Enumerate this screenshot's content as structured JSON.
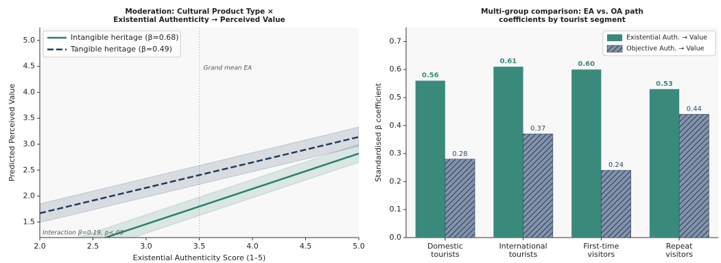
{
  "chart_data": [
    {
      "type": "line",
      "title": "Moderation: Cultural Product Type ×\nExistential Authenticity → Perceived Value",
      "xlabel": "Existential Authenticity Score (1–5)",
      "ylabel": "Predicted Perceived Value",
      "x": [
        2,
        5
      ],
      "series": [
        {
          "name": "Intangible heritage (β=0.68)",
          "color": "#2a7d6b",
          "linestyle": "solid",
          "values": [
            0.78,
            2.82
          ],
          "lower": [
            0.6,
            2.65
          ],
          "upper": [
            0.96,
            3.0
          ]
        },
        {
          "name": "Tangible heritage (β=0.49)",
          "color": "#1f3a5f",
          "linestyle": "dashed",
          "values": [
            1.67,
            3.14
          ],
          "lower": [
            1.49,
            2.96
          ],
          "upper": [
            1.85,
            3.33
          ]
        }
      ],
      "xlim": [
        2,
        5.0
      ],
      "ylim": [
        1.2,
        5.25
      ],
      "xticks": [
        {
          "value": 2,
          "label": "2.0"
        },
        2.5,
        {
          "value": 3,
          "label": "3.0"
        },
        3.5,
        {
          "value": 4,
          "label": "4.0"
        },
        4.5,
        {
          "value": 5,
          "label": "5.0"
        }
      ],
      "yticks": [
        1.5,
        {
          "value": 2,
          "label": "2.0"
        },
        2.5,
        {
          "value": 3,
          "label": "3.0"
        },
        3.5,
        {
          "value": 4,
          "label": "4.0"
        },
        4.5,
        {
          "value": 5,
          "label": "5.0"
        }
      ],
      "vline": 3.5,
      "vline_label": "Grand mean EA",
      "annotation": "Interaction β=0.19, p<.05",
      "legend": "upper left"
    },
    {
      "type": "bar",
      "title": "Multi-group comparison: EA vs. OA path\ncoefficients by tourist segment",
      "ylabel": "Standardised β coefficient",
      "categories": [
        "Domestic\ntourists",
        "International\ntourists",
        "First-time\nvisitors",
        "Repeat\nvisitors"
      ],
      "series": [
        {
          "name": "Existential Auth. → Value",
          "color": "#3a8a7c",
          "hatch": false,
          "values": [
            0.56,
            0.61,
            0.6,
            0.53
          ],
          "value_labels": [
            "0.56",
            "0.61",
            "0.60",
            "0.53"
          ]
        },
        {
          "name": "Objective Auth. → Value",
          "color": "#8393ab",
          "hatch": true,
          "values": [
            0.28,
            0.37,
            0.24,
            0.44
          ],
          "value_labels": [
            "0.28",
            "0.37",
            "0.24",
            "0.44"
          ]
        }
      ],
      "ylim": [
        0,
        0.75
      ],
      "yticks": [
        {
          "value": 0,
          "label": "0.0"
        },
        0.1,
        0.2,
        0.3,
        0.4,
        0.5,
        0.6,
        0.7
      ],
      "legend": "upper right"
    }
  ]
}
